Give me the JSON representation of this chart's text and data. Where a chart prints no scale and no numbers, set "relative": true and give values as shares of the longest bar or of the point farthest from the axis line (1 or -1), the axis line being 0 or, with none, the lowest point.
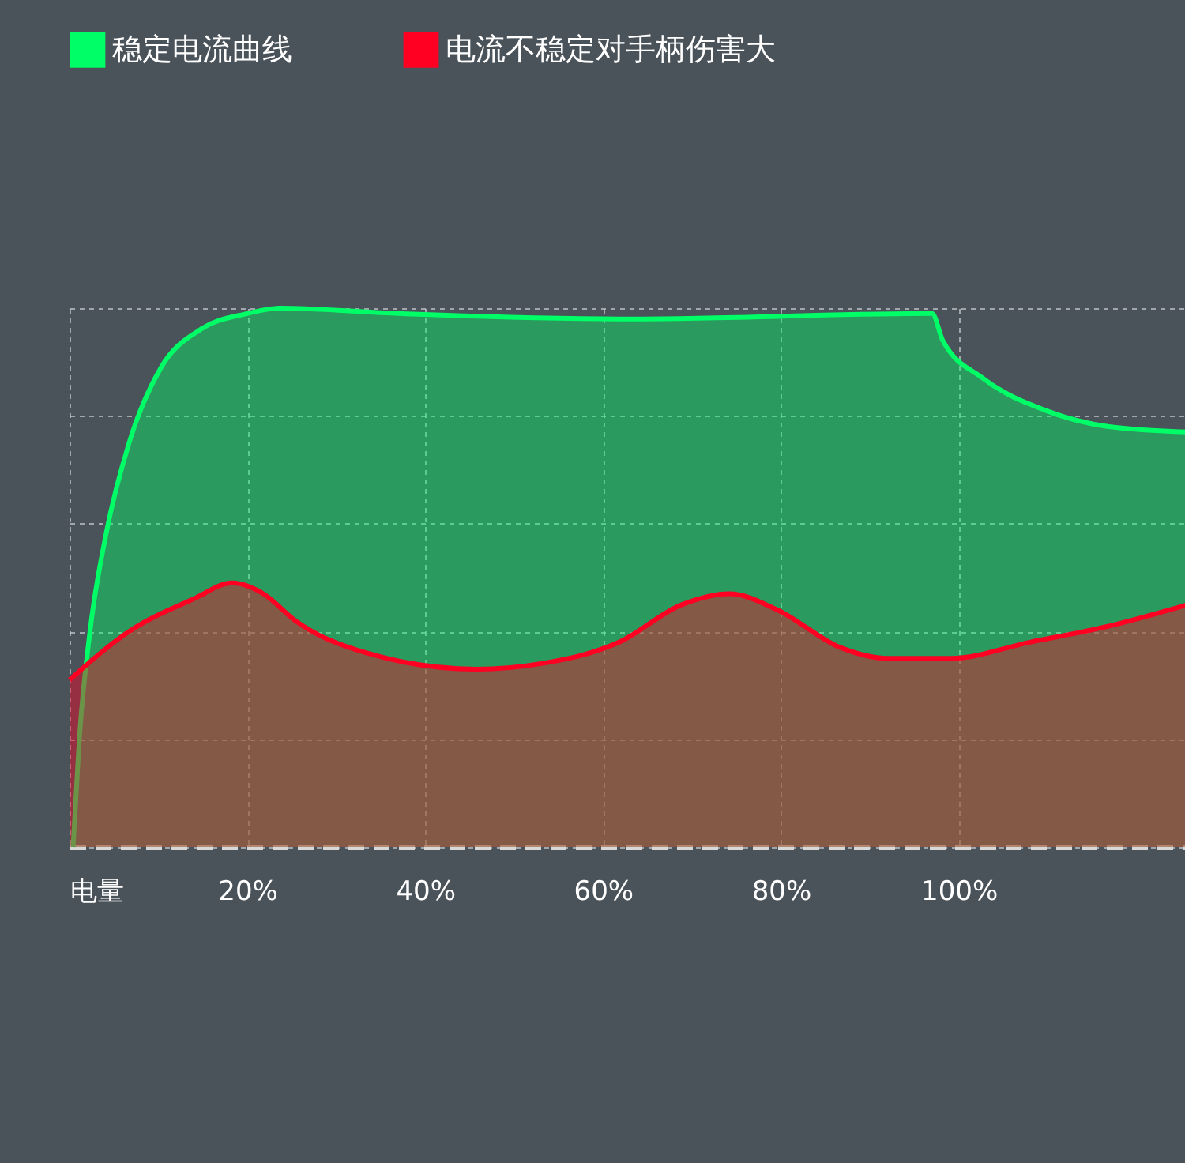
{
  "chart_data": {
    "type": "area",
    "relative": true,
    "legend": "top",
    "grid": true,
    "line_style": "solid",
    "marker": "none",
    "xlim": [
      0,
      125.8
    ],
    "xticks": [
      {
        "value": 0,
        "label": "电量"
      },
      {
        "value": 20,
        "label": "20%"
      },
      {
        "value": 40,
        "label": "40%"
      },
      {
        "value": 60,
        "label": "60%"
      },
      {
        "value": 80,
        "label": "80%"
      },
      {
        "value": 100,
        "label": "100%"
      }
    ],
    "series": [
      {
        "name": "稳定电流曲线",
        "color": "#00ff66",
        "x": [
          0.4,
          1.1,
          2.3,
          4.1,
          6.7,
          10.3,
          14.7,
          20,
          23.6,
          37,
          63.6,
          97,
          98.2,
          102.7,
          109.8,
          116.9,
          125.8
        ],
        "values": [
          0,
          0.2,
          0.4,
          0.58,
          0.75,
          0.89,
          0.96,
          0.99,
          1,
          0.99,
          0.98,
          0.99,
          0.94,
          0.87,
          0.81,
          0.78,
          0.77
        ]
      },
      {
        "name": "电流不稳定对手柄伤害大",
        "color": "#ff0022",
        "x": [
          0,
          6.7,
          13.9,
          18.3,
          21.8,
          25.4,
          33.4,
          45.8,
          52.9,
          61.8,
          68.9,
          74.2,
          79.6,
          86.7,
          92,
          99.1,
          108,
          116.9,
          125.8
        ],
        "values": [
          0.31,
          0.4,
          0.46,
          0.49,
          0.47,
          0.42,
          0.36,
          0.33,
          0.34,
          0.38,
          0.45,
          0.47,
          0.44,
          0.37,
          0.35,
          0.35,
          0.38,
          0.41,
          0.45
        ]
      }
    ]
  }
}
